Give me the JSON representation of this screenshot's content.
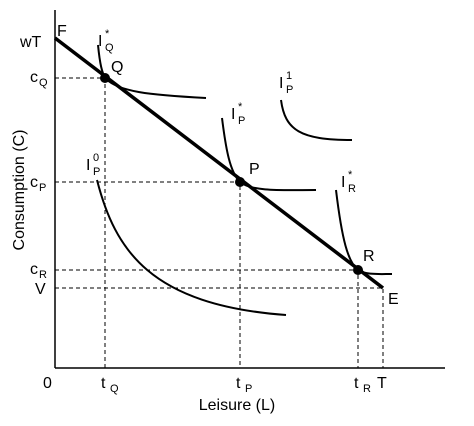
{
  "axes": {
    "x_label": "Leisure (L)",
    "y_label": "Consumption (C)",
    "origin": "0"
  },
  "labels": {
    "wT": "wT",
    "F": "F",
    "Q": "Q",
    "P": "P",
    "R": "R",
    "E": "E",
    "V": "V",
    "T": "T"
  },
  "y_ticks": [
    {
      "base": "c",
      "sub": "Q"
    },
    {
      "base": "c",
      "sub": "P"
    },
    {
      "base": "c",
      "sub": "R"
    }
  ],
  "x_ticks": [
    {
      "base": "t",
      "sub": "Q"
    },
    {
      "base": "t",
      "sub": "P"
    },
    {
      "base": "t",
      "sub": "R"
    }
  ],
  "curves": [
    {
      "base": "I",
      "sup": "*",
      "sub": "Q"
    },
    {
      "base": "I",
      "sup": "1",
      "sub": "P"
    },
    {
      "base": "I",
      "sup": "*",
      "sub": "P"
    },
    {
      "base": "I",
      "sup": "0",
      "sub": "P"
    },
    {
      "base": "I",
      "sup": "*",
      "sub": "R"
    }
  ]
}
